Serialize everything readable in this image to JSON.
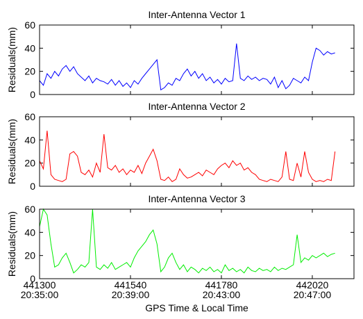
{
  "chart_data": [
    {
      "type": "line",
      "title": "Inter-Antenna Vector 1",
      "ylabel": "Residuals(mm)",
      "x": [
        441300,
        441310,
        441320,
        441330,
        441340,
        441350,
        441360,
        441370,
        441380,
        441390,
        441400,
        441410,
        441420,
        441430,
        441440,
        441450,
        441460,
        441470,
        441480,
        441490,
        441500,
        441510,
        441520,
        441530,
        441540,
        441550,
        441560,
        441570,
        441580,
        441590,
        441600,
        441610,
        441620,
        441630,
        441640,
        441650,
        441660,
        441670,
        441680,
        441690,
        441700,
        441710,
        441720,
        441730,
        441740,
        441750,
        441760,
        441770,
        441780,
        441790,
        441800,
        441810,
        441820,
        441830,
        441840,
        441850,
        441860,
        441870,
        441880,
        441890,
        441900,
        441910,
        441920,
        441930,
        441940,
        441950,
        441960,
        441970,
        441980,
        441990,
        442000,
        442010,
        442020,
        442030,
        442040,
        442050,
        442060,
        442070,
        442080
      ],
      "series": [
        {
          "color": "#0000ff",
          "values": [
            12,
            8,
            18,
            14,
            20,
            16,
            22,
            25,
            20,
            24,
            18,
            15,
            12,
            16,
            10,
            14,
            12,
            11,
            9,
            13,
            8,
            12,
            7,
            10,
            6,
            12,
            9,
            14,
            18,
            22,
            26,
            30,
            4,
            6,
            10,
            8,
            14,
            12,
            18,
            22,
            16,
            20,
            14,
            18,
            12,
            15,
            10,
            13,
            9,
            14,
            11,
            12,
            44,
            14,
            12,
            16,
            13,
            15,
            12,
            14,
            13,
            9,
            15,
            6,
            12,
            5,
            8,
            14,
            12,
            10,
            15,
            12,
            28,
            40,
            38,
            34,
            37,
            35,
            36
          ]
        }
      ],
      "xlim": [
        441300,
        442130
      ],
      "ylim": [
        0,
        60
      ],
      "xticks": [
        441300,
        441540,
        441780,
        442020
      ],
      "yticks": [
        0,
        20,
        40,
        60
      ]
    },
    {
      "type": "line",
      "title": "Inter-Antenna Vector 2",
      "ylabel": "Residuals(mm)",
      "x": [
        441300,
        441310,
        441320,
        441330,
        441340,
        441350,
        441360,
        441370,
        441380,
        441390,
        441400,
        441410,
        441420,
        441430,
        441440,
        441450,
        441460,
        441470,
        441480,
        441490,
        441500,
        441510,
        441520,
        441530,
        441540,
        441550,
        441560,
        441570,
        441580,
        441590,
        441600,
        441610,
        441620,
        441630,
        441640,
        441650,
        441660,
        441670,
        441680,
        441690,
        441700,
        441710,
        441720,
        441730,
        441740,
        441750,
        441760,
        441770,
        441780,
        441790,
        441800,
        441810,
        441820,
        441830,
        441840,
        441850,
        441860,
        441870,
        441880,
        441890,
        441900,
        441910,
        441920,
        441930,
        441940,
        441950,
        441960,
        441970,
        441980,
        441990,
        442000,
        442010,
        442020,
        442030,
        442040,
        442050,
        442060,
        442070,
        442080
      ],
      "series": [
        {
          "color": "#ff0000",
          "values": [
            22,
            15,
            48,
            10,
            6,
            5,
            4,
            6,
            28,
            30,
            26,
            12,
            10,
            14,
            8,
            20,
            12,
            45,
            16,
            14,
            18,
            12,
            15,
            10,
            14,
            12,
            18,
            11,
            20,
            26,
            32,
            22,
            6,
            5,
            8,
            4,
            6,
            15,
            10,
            7,
            8,
            10,
            12,
            9,
            14,
            12,
            10,
            15,
            18,
            20,
            16,
            22,
            18,
            20,
            14,
            16,
            12,
            10,
            6,
            5,
            4,
            6,
            5,
            4,
            8,
            30,
            6,
            5,
            20,
            8,
            30,
            12,
            6,
            4,
            5,
            4,
            6,
            5,
            30
          ]
        }
      ],
      "xlim": [
        441300,
        442130
      ],
      "ylim": [
        0,
        60
      ],
      "xticks": [
        441300,
        441540,
        441780,
        442020
      ],
      "yticks": [
        0,
        20,
        40,
        60
      ]
    },
    {
      "type": "line",
      "title": "Inter-Antenna Vector 3",
      "ylabel": "Residuals(mm)",
      "xlabel": "GPS Time & Local Time",
      "x": [
        441300,
        441310,
        441320,
        441330,
        441340,
        441350,
        441360,
        441370,
        441380,
        441390,
        441400,
        441410,
        441420,
        441430,
        441440,
        441450,
        441460,
        441470,
        441480,
        441490,
        441500,
        441510,
        441520,
        441530,
        441540,
        441550,
        441560,
        441570,
        441580,
        441590,
        441600,
        441610,
        441620,
        441630,
        441640,
        441650,
        441660,
        441670,
        441680,
        441690,
        441700,
        441710,
        441720,
        441730,
        441740,
        441750,
        441760,
        441770,
        441780,
        441790,
        441800,
        441810,
        441820,
        441830,
        441840,
        441850,
        441860,
        441870,
        441880,
        441890,
        441900,
        441910,
        441920,
        441930,
        441940,
        441950,
        441960,
        441970,
        441980,
        441990,
        442000,
        442010,
        442020,
        442030,
        442040,
        442050,
        442060,
        442070,
        442080
      ],
      "series": [
        {
          "color": "#00ee00",
          "values": [
            45,
            60,
            55,
            30,
            10,
            12,
            18,
            22,
            14,
            5,
            8,
            12,
            10,
            14,
            60,
            10,
            8,
            12,
            9,
            14,
            8,
            10,
            12,
            14,
            10,
            18,
            24,
            28,
            32,
            38,
            42,
            30,
            6,
            10,
            18,
            22,
            14,
            8,
            12,
            6,
            10,
            8,
            5,
            9,
            7,
            10,
            6,
            8,
            5,
            12,
            7,
            9,
            6,
            8,
            5,
            10,
            7,
            6,
            9,
            7,
            8,
            6,
            10,
            7,
            9,
            8,
            10,
            12,
            38,
            14,
            18,
            16,
            20,
            18,
            20,
            22,
            19,
            21,
            22
          ]
        }
      ],
      "xlim": [
        441300,
        442130
      ],
      "ylim": [
        0,
        60
      ],
      "xticks": [
        441300,
        441540,
        441780,
        442020
      ],
      "xtick_times": [
        "20:35:00",
        "20:39:00",
        "20:43:00",
        "20:47:00"
      ],
      "yticks": [
        0,
        20,
        40,
        60
      ]
    }
  ]
}
